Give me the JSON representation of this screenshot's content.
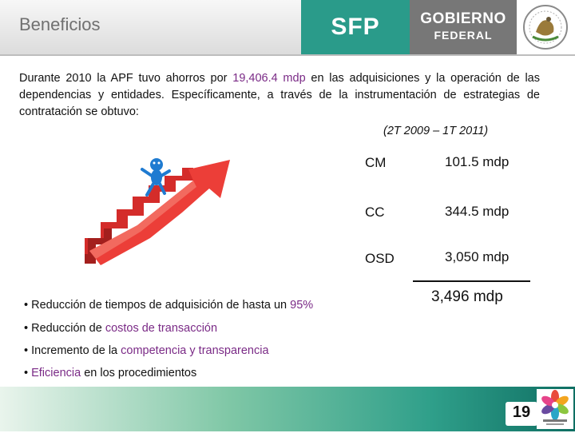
{
  "header": {
    "title": "Beneficios",
    "sfp": "SFP",
    "gobierno_line1": "GOBIERNO",
    "gobierno_line2": "FEDERAL",
    "seal_icon": "mexico-seal-icon"
  },
  "intro": {
    "p1": "Durante 2010 la APF tuvo ahorros por ",
    "amount": "19,406.4 mdp",
    "p2": " en las adquisiciones y la operación de las dependencias y entidades. Específicamente,   a través de la instrumentación de estrategias de contratación se obtuvo:"
  },
  "period": "(2T 2009 – 1T 2011)",
  "savings": [
    {
      "label": "CM",
      "value": "101.5 mdp"
    },
    {
      "label": "CC",
      "value": "344.5 mdp"
    },
    {
      "label": "OSD",
      "value": "3,050 mdp"
    }
  ],
  "total": "3,496 mdp",
  "bullets": {
    "b1_pre": "• Reducción de tiempos de adquisición de hasta un ",
    "b1_hl": "95%",
    "b2_pre": "• Reducción de ",
    "b2_hl": "costos de transacción",
    "b3_pre": "• Incremento de la ",
    "b3_hl": "competencia y transparencia",
    "b4_pre": "• ",
    "b4_hl": "Eficiencia",
    "b4_post": " en los procedimientos"
  },
  "footer": {
    "page_number": "19",
    "logo_icon": "vivir-mejor-logo-icon"
  },
  "colors": {
    "accent_purple": "#7a2a86",
    "sfp_teal": "#2a9b8a",
    "gobierno_gray": "#777777",
    "arrow_red": "#e63a35",
    "figure_blue": "#1f7bd1"
  }
}
